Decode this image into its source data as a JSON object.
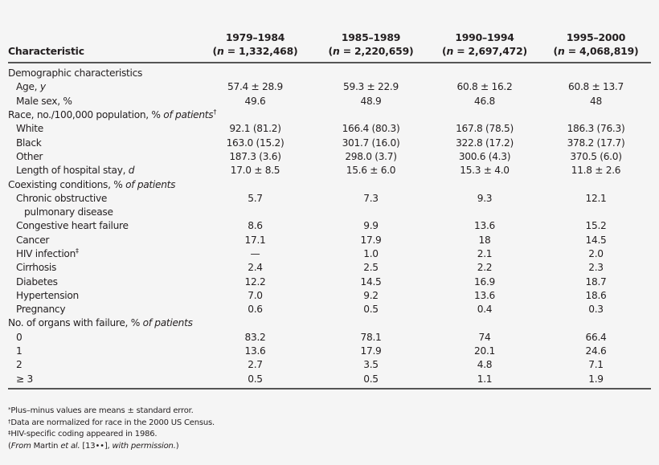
{
  "table": {
    "headers": {
      "characteristic": "Characteristic",
      "periods": [
        {
          "years": "1979–1984",
          "n_prefix": "(",
          "n_var": "n",
          "n_value": " = 1,332,468)"
        },
        {
          "years": "1985–1989",
          "n_prefix": "(",
          "n_var": "n",
          "n_value": " = 2,220,659)"
        },
        {
          "years": "1990–1994",
          "n_prefix": "(",
          "n_var": "n",
          "n_value": " = 2,697,472)"
        },
        {
          "years": "1995–2000",
          "n_prefix": "(",
          "n_var": "n",
          "n_value": " = 4,068,819)"
        }
      ]
    },
    "sections": {
      "demographic": {
        "label": "Demographic characteristics",
        "rows": [
          {
            "label": "Age, ",
            "label_italic": "y",
            "values": [
              "57.4 ± 28.9",
              "59.3 ± 22.9",
              "60.8 ± 16.2",
              "60.8 ± 13.7"
            ]
          },
          {
            "label": "Male sex, %",
            "values": [
              "49.6",
              "48.9",
              "46.8",
              "48"
            ]
          }
        ]
      },
      "race": {
        "label": "Race, no./100,000 population, % ",
        "label_italic": "of patients",
        "label_sup": "†",
        "rows": [
          {
            "label": "White",
            "values": [
              "92.1 (81.2)",
              "166.4 (80.3)",
              "167.8 (78.5)",
              "186.3 (76.3)"
            ]
          },
          {
            "label": "Black",
            "values": [
              "163.0 (15.2)",
              "301.7 (16.0)",
              "322.8 (17.2)",
              "378.2 (17.7)"
            ]
          },
          {
            "label": "Other",
            "values": [
              "187.3 (3.6)",
              "298.0 (3.7)",
              "300.6 (4.3)",
              "370.5 (6.0)"
            ]
          },
          {
            "label": "Length of hospital stay, ",
            "label_italic": "d",
            "values": [
              "17.0 ± 8.5",
              "15.6 ± 6.0",
              "15.3 ± 4.0",
              "11.8 ± 2.6"
            ]
          }
        ]
      },
      "coexisting": {
        "label": "Coexisting conditions, % ",
        "label_italic": "of patients",
        "rows": [
          {
            "label": "Chronic obstructive",
            "label_cont": "pulmonary disease",
            "values": [
              "5.7",
              "7.3",
              "9.3",
              "12.1"
            ]
          },
          {
            "label": "Congestive heart failure",
            "values": [
              "8.6",
              "9.9",
              "13.6",
              "15.2"
            ]
          },
          {
            "label": "Cancer",
            "values": [
              "17.1",
              "17.9",
              "18",
              "14.5"
            ]
          },
          {
            "label": "HIV infection",
            "label_sup": "‡",
            "values": [
              "—",
              "1.0",
              "2.1",
              "2.0"
            ]
          },
          {
            "label": "Cirrhosis",
            "values": [
              "2.4",
              "2.5",
              "2.2",
              "2.3"
            ]
          },
          {
            "label": "Diabetes",
            "values": [
              "12.2",
              "14.5",
              "16.9",
              "18.7"
            ]
          },
          {
            "label": "Hypertension",
            "values": [
              "7.0",
              "9.2",
              "13.6",
              "18.6"
            ]
          },
          {
            "label": "Pregnancy",
            "values": [
              "0.6",
              "0.5",
              "0.4",
              "0.3"
            ]
          }
        ]
      },
      "organs": {
        "label": "No. of organs with failure, % ",
        "label_italic": "of patients",
        "rows": [
          {
            "label": "0",
            "values": [
              "83.2",
              "78.1",
              "74",
              "66.4"
            ]
          },
          {
            "label": "1",
            "values": [
              "13.6",
              "17.9",
              "20.1",
              "24.6"
            ]
          },
          {
            "label": "2",
            "values": [
              "2.7",
              "3.5",
              "4.8",
              "7.1"
            ]
          },
          {
            "label": "≥ 3",
            "values": [
              "0.5",
              "0.5",
              "1.1",
              "1.9"
            ]
          }
        ]
      }
    }
  },
  "footnotes": {
    "note1": {
      "mark": "*",
      "text": "Plus–minus values are means ± standard error."
    },
    "note2": {
      "mark": "†",
      "text": "Data are normalized for race in the 2000 US Census."
    },
    "note3": {
      "mark": "‡",
      "text": "HIV-specific coding appeared in 1986."
    },
    "source": {
      "open": "(",
      "from": "From",
      "author": " Martin ",
      "etal": "et al.",
      "ref": " [13••], ",
      "perm": "with permission.",
      "close": ")"
    }
  }
}
